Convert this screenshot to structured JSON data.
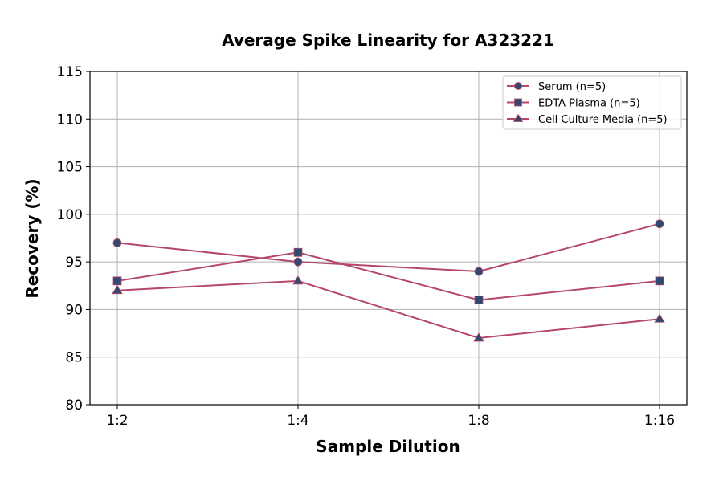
{
  "chart_data": {
    "type": "line",
    "title": "Average Spike Linearity for A323221",
    "xlabel": "Sample Dilution",
    "ylabel": "Recovery (%)",
    "categories": [
      "1:2",
      "1:4",
      "1:8",
      "1:16"
    ],
    "ylim": [
      80,
      115
    ],
    "yticks": [
      80,
      85,
      90,
      95,
      100,
      105,
      110,
      115
    ],
    "grid": true,
    "legend_position": "top-right",
    "line_color": "#b5476d",
    "marker_color": "#2f4a6e",
    "series": [
      {
        "name": "Serum (n=5)",
        "marker": "circle",
        "values": [
          97,
          95,
          94,
          99
        ]
      },
      {
        "name": "EDTA Plasma (n=5)",
        "marker": "square",
        "values": [
          93,
          96,
          91,
          93
        ]
      },
      {
        "name": "Cell Culture Media (n=5)",
        "marker": "triangle",
        "values": [
          92,
          93,
          87,
          89
        ]
      }
    ]
  }
}
